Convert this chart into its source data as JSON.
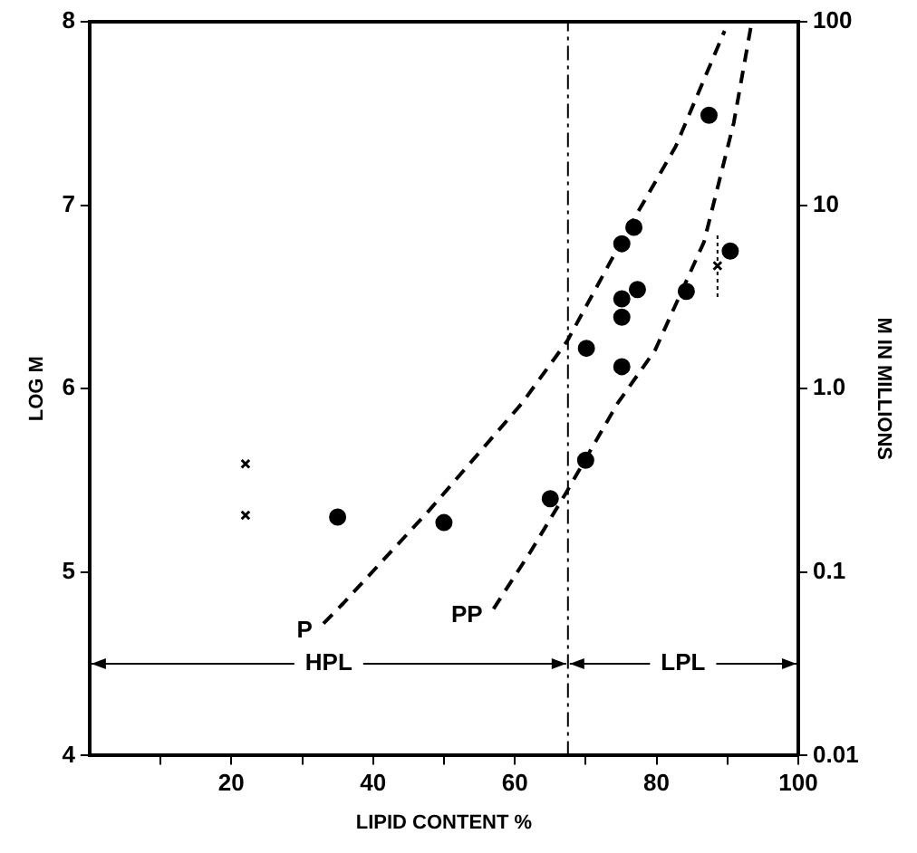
{
  "chart_data": {
    "type": "scatter",
    "xlabel": "LIPID CONTENT %",
    "ylabel": "LOG M",
    "y2label": "M IN MILLIONS",
    "xlim": [
      0,
      100
    ],
    "xticks": [
      {
        "value": 10,
        "label": null
      },
      20,
      {
        "value": 30,
        "label": null
      },
      40,
      {
        "value": 50,
        "label": null
      },
      60,
      {
        "value": 70,
        "label": null
      },
      80,
      {
        "value": 90,
        "label": null
      },
      100
    ],
    "ylim": [
      4,
      8
    ],
    "yticks": [
      4,
      5,
      6,
      7,
      8
    ],
    "y2lim": [
      0.01,
      100
    ],
    "y2ticks": [
      {
        "value": 0.01,
        "label": "0.01"
      },
      0.1,
      {
        "value": 1,
        "label": "1.0"
      },
      10,
      100
    ],
    "log": "y2",
    "grid": false,
    "legend": false,
    "series": [
      {
        "color": "#000000",
        "marker": "circle",
        "x": [
          35,
          50,
          65,
          70,
          87.4,
          76.8,
          75.1,
          90.4,
          75.1,
          77.3,
          84.2,
          75.1,
          70.1,
          75.1
        ],
        "values": [
          5.3,
          5.27,
          5.4,
          5.61,
          7.49,
          6.88,
          6.79,
          6.75,
          6.49,
          6.54,
          6.53,
          6.39,
          6.22,
          6.12
        ]
      },
      {
        "color": "#000000",
        "marker": "cross",
        "x": [
          22,
          22,
          88.6
        ],
        "values": [
          5.59,
          5.31,
          6.67
        ],
        "errors": [
          null,
          null,
          [
            6.5,
            6.84
          ]
        ]
      },
      {
        "type": "line",
        "name": "P",
        "color": "#000000",
        "marker": "none",
        "line_style": "dashed",
        "x": [
          33,
          35.8,
          48,
          61,
          67.4,
          76,
          82.7,
          89.6
        ],
        "values": [
          4.72,
          4.83,
          5.34,
          5.92,
          6.26,
          6.87,
          7.32,
          7.95
        ]
      },
      {
        "type": "line",
        "name": "PP",
        "color": "#000000",
        "marker": "none",
        "line_style": "dashed",
        "x": [
          57,
          62.2,
          67.2,
          74.5,
          79.8,
          86.7,
          90.9,
          93.3
        ],
        "values": [
          4.8,
          5.11,
          5.43,
          5.92,
          6.21,
          6.8,
          7.45,
          7.97
        ]
      }
    ],
    "ref_lines": [
      {
        "axis": "x",
        "value": 67.5,
        "line_style": "dashdot"
      }
    ],
    "annotations": [
      "HPL",
      "LPL"
    ]
  }
}
